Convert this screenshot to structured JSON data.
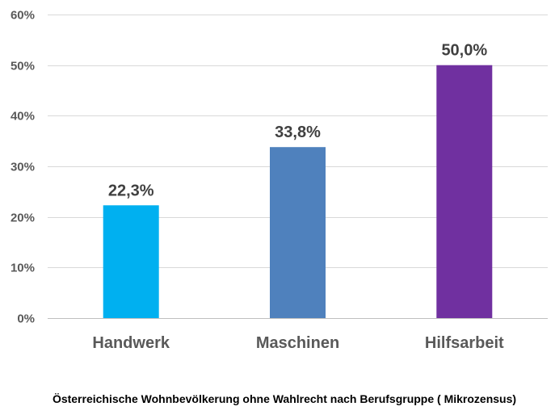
{
  "chart_data": {
    "type": "bar",
    "title": "Österreichische Wohnbevölkerung ohne Wahlrecht nach Berufsgruppe ( Mikrozensus)",
    "xlabel": "",
    "ylabel": "",
    "categories": [
      "Handwerk",
      "Maschinen",
      "Hilfsarbeit"
    ],
    "values": [
      22.3,
      33.8,
      50.0
    ],
    "value_labels": [
      "22,3%",
      "33,8%",
      "50,0%"
    ],
    "colors": [
      "#00b0f0",
      "#4f81bd",
      "#7030a0"
    ],
    "ylim": [
      0,
      60
    ],
    "yticks": [
      0,
      10,
      20,
      30,
      40,
      50,
      60
    ],
    "ytick_labels": [
      "0%",
      "10%",
      "20%",
      "30%",
      "40%",
      "50%",
      "60%"
    ],
    "grid": true,
    "legend": "none"
  }
}
